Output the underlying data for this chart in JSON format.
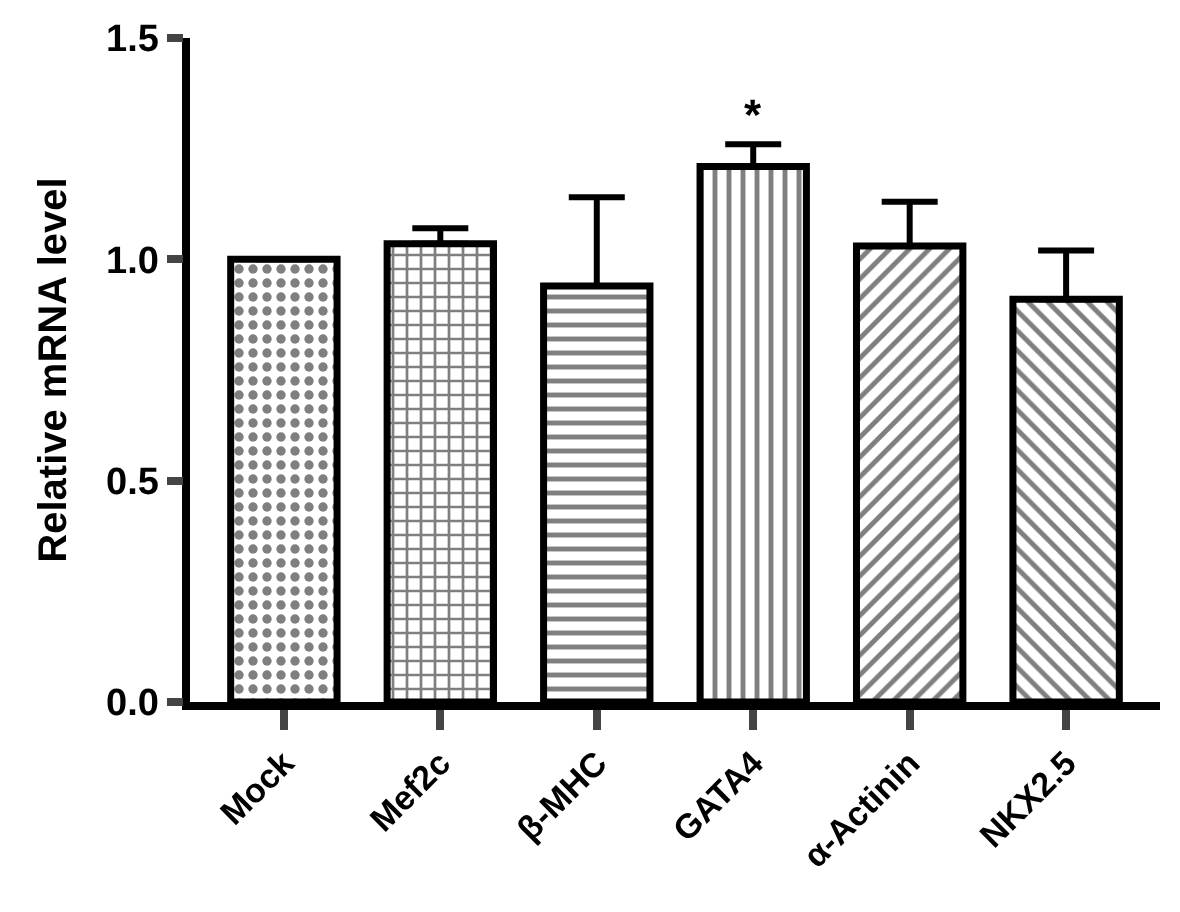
{
  "chart_data": {
    "type": "bar",
    "ylabel": "Relative mRNA level",
    "categories": [
      "Mock",
      "Mef2c",
      "β-MHC",
      "GATA4",
      "α-Actinin",
      "NKX2.5"
    ],
    "values": [
      1.0,
      1.035,
      0.94,
      1.21,
      1.03,
      0.91
    ],
    "errors": [
      null,
      0.035,
      0.2,
      0.05,
      0.1,
      0.11
    ],
    "color": "#000000",
    "ylim": [
      0,
      1.5
    ],
    "yticks": [
      {
        "value": 0,
        "label": "0.0"
      },
      0.5,
      {
        "value": 1,
        "label": "1.0"
      },
      1.5
    ],
    "annotations": [
      {
        "text": "*",
        "x": "GATA4",
        "y": 1.26
      }
    ],
    "legend": false
  }
}
